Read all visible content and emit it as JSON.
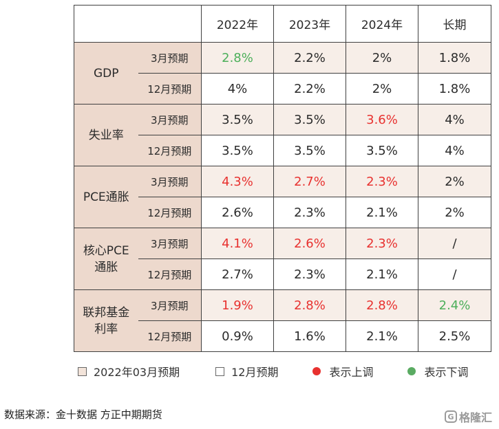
{
  "table": {
    "headers": [
      "2022年",
      "2023年",
      "2024年",
      "长期"
    ],
    "groups": [
      {
        "category": "GDP",
        "rows": [
          {
            "period": "3月预期",
            "values": [
              "2.8%",
              "2.2%",
              "2%",
              "1.8%"
            ],
            "status": [
              "down",
              "neutral",
              "neutral",
              "neutral"
            ]
          },
          {
            "period": "12月预期",
            "values": [
              "4%",
              "2.2%",
              "2%",
              "1.8%"
            ],
            "status": [
              "neutral",
              "neutral",
              "neutral",
              "neutral"
            ]
          }
        ]
      },
      {
        "category": "失业率",
        "rows": [
          {
            "period": "3月预期",
            "values": [
              "3.5%",
              "3.5%",
              "3.6%",
              "4%"
            ],
            "status": [
              "neutral",
              "neutral",
              "up",
              "neutral"
            ]
          },
          {
            "period": "12月预期",
            "values": [
              "3.5%",
              "3.5%",
              "3.5%",
              "4%"
            ],
            "status": [
              "neutral",
              "neutral",
              "neutral",
              "neutral"
            ]
          }
        ]
      },
      {
        "category": "PCE通胀",
        "rows": [
          {
            "period": "3月预期",
            "values": [
              "4.3%",
              "2.7%",
              "2.3%",
              "2%"
            ],
            "status": [
              "up",
              "up",
              "up",
              "neutral"
            ]
          },
          {
            "period": "12月预期",
            "values": [
              "2.6%",
              "2.3%",
              "2.1%",
              "2%"
            ],
            "status": [
              "neutral",
              "neutral",
              "neutral",
              "neutral"
            ]
          }
        ]
      },
      {
        "category": "核心PCE\n通胀",
        "rows": [
          {
            "period": "3月预期",
            "values": [
              "4.1%",
              "2.6%",
              "2.3%",
              "/"
            ],
            "status": [
              "up",
              "up",
              "up",
              "neutral"
            ]
          },
          {
            "period": "12月预期",
            "values": [
              "2.7%",
              "2.3%",
              "2.1%",
              "/"
            ],
            "status": [
              "neutral",
              "neutral",
              "neutral",
              "neutral"
            ]
          }
        ]
      },
      {
        "category": "联邦基金\n利率",
        "rows": [
          {
            "period": "3月预期",
            "values": [
              "1.9%",
              "2.8%",
              "2.8%",
              "2.4%"
            ],
            "status": [
              "up",
              "up",
              "up",
              "down"
            ]
          },
          {
            "period": "12月预期",
            "values": [
              "0.9%",
              "1.6%",
              "2.1%",
              "2.5%"
            ],
            "status": [
              "neutral",
              "neutral",
              "neutral",
              "neutral"
            ]
          }
        ]
      }
    ]
  },
  "legend": {
    "march": "2022年03月预期",
    "december": "12月预期",
    "up": "表示上调",
    "down": "表示下调"
  },
  "colors": {
    "up": "#e8312f",
    "down": "#4caf5a",
    "category_bg": "#edd9cd",
    "march_row_bg": "#f7eee8"
  },
  "source": "数据来源：金十数据 方正中期期货",
  "logo": {
    "mark": "G",
    "text": "格隆汇"
  }
}
